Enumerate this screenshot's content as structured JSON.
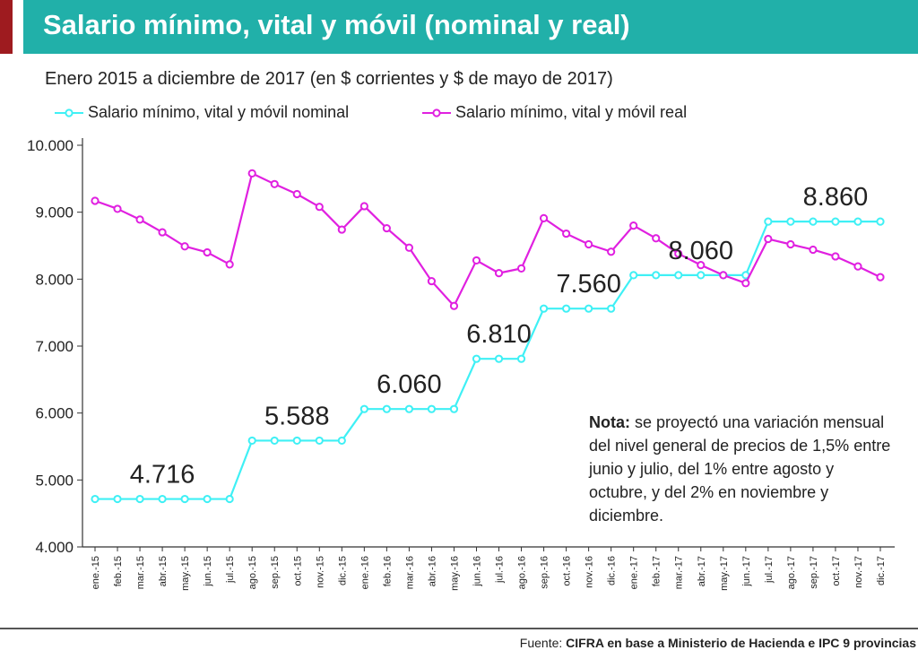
{
  "header": {
    "title": "Salario mínimo, vital y móvil (nominal y real)",
    "accent_color": "#9e1b1f",
    "bar_color": "#21b0a9"
  },
  "subtitle": "Enero 2015 a diciembre de 2017 (en $ corrientes y $ de mayo de 2017)",
  "legend": {
    "nominal": "Salario mínimo, vital y móvil nominal",
    "real": "Salario mínimo, vital y móvil real",
    "placement": "top-left"
  },
  "note": {
    "label": "Nota:",
    "text": " se proyectó una variación mensual del nivel general de precios de 1,5% entre junio y julio, del 1% entre agosto y octubre, y del 2% en noviembre y diciembre."
  },
  "footer": {
    "label": "Fuente: ",
    "source": "CIFRA en base a Ministerio de Hacienda e IPC 9 provincias"
  },
  "chart_data": {
    "type": "line",
    "title": "Salario mínimo, vital y móvil (nominal y real)",
    "subtitle": "Enero 2015 a diciembre de 2017 (en $ corrientes y $ de mayo de 2017)",
    "xlabel": "",
    "ylabel": "",
    "ylim": [
      4000,
      10000
    ],
    "yticks": [
      4000,
      5000,
      6000,
      7000,
      8000,
      9000,
      10000
    ],
    "ytick_labels": [
      "4.000",
      "5.000",
      "6.000",
      "7.000",
      "8.000",
      "9.000",
      "10.000"
    ],
    "grid": false,
    "legend_position": "top-left",
    "categories": [
      "ene.-15",
      "feb.-15",
      "mar.-15",
      "abr.-15",
      "may.-15",
      "jun.-15",
      "jul.-15",
      "ago.-15",
      "sep.-15",
      "oct.-15",
      "nov.-15",
      "dic.-15",
      "ene.-16",
      "feb.-16",
      "mar.-16",
      "abr.-16",
      "may.-16",
      "jun.-16",
      "jul.-16",
      "ago.-16",
      "sep.-16",
      "oct.-16",
      "nov.-16",
      "dic.-16",
      "ene.-17",
      "feb.-17",
      "mar.-17",
      "abr.-17",
      "may.-17",
      "jun.-17",
      "jul.-17",
      "ago.-17",
      "sep.-17",
      "oct.-17",
      "nov.-17",
      "dic.-17"
    ],
    "series": [
      {
        "name": "Salario mínimo, vital y móvil nominal",
        "color": "#3ff0f5",
        "values": [
          4716,
          4716,
          4716,
          4716,
          4716,
          4716,
          4716,
          5588,
          5588,
          5588,
          5588,
          5588,
          6060,
          6060,
          6060,
          6060,
          6060,
          6810,
          6810,
          6810,
          7560,
          7560,
          7560,
          7560,
          8060,
          8060,
          8060,
          8060,
          8060,
          8060,
          8860,
          8860,
          8860,
          8860,
          8860,
          8860
        ]
      },
      {
        "name": "Salario mínimo, vital y móvil real",
        "color": "#e020e0",
        "values": [
          9170,
          9050,
          8890,
          8700,
          8490,
          8400,
          8220,
          9580,
          9420,
          9270,
          9080,
          8740,
          9090,
          8760,
          8470,
          7970,
          7600,
          8280,
          8090,
          8160,
          8910,
          8680,
          8520,
          8410,
          8800,
          8610,
          8380,
          8210,
          8060,
          7940,
          8600,
          8520,
          8440,
          8340,
          8190,
          8030
        ]
      }
    ],
    "annotations": [
      {
        "text": "4.716",
        "index": 3,
        "value": 4716
      },
      {
        "text": "5.588",
        "index": 9,
        "value": 5588
      },
      {
        "text": "6.060",
        "index": 14,
        "value": 6060
      },
      {
        "text": "6.810",
        "index": 18,
        "value": 6810
      },
      {
        "text": "7.560",
        "index": 22,
        "value": 7560
      },
      {
        "text": "8.060",
        "index": 27,
        "value": 8060
      },
      {
        "text": "8.860",
        "index": 33,
        "value": 8860
      }
    ]
  }
}
